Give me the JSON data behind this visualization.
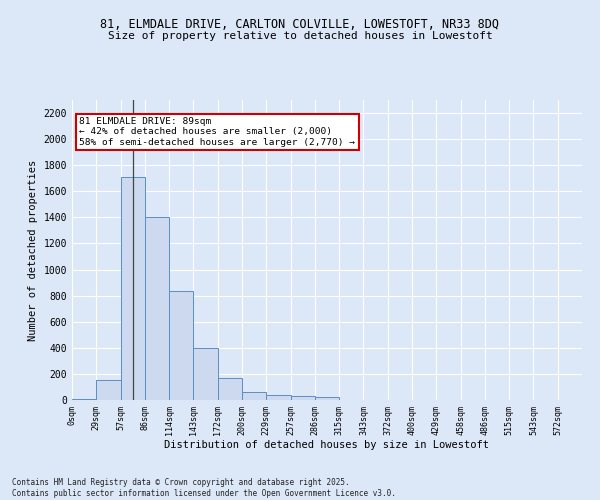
{
  "title_line1": "81, ELMDALE DRIVE, CARLTON COLVILLE, LOWESTOFT, NR33 8DQ",
  "title_line2": "Size of property relative to detached houses in Lowestoft",
  "xlabel": "Distribution of detached houses by size in Lowestoft",
  "ylabel": "Number of detached properties",
  "bar_values": [
    10,
    155,
    1710,
    1400,
    835,
    400,
    165,
    65,
    40,
    30,
    25,
    0,
    0,
    0,
    0,
    0,
    0,
    0,
    0,
    0,
    0
  ],
  "bar_labels": [
    "0sqm",
    "29sqm",
    "57sqm",
    "86sqm",
    "114sqm",
    "143sqm",
    "172sqm",
    "200sqm",
    "229sqm",
    "257sqm",
    "286sqm",
    "315sqm",
    "343sqm",
    "372sqm",
    "400sqm",
    "429sqm",
    "458sqm",
    "486sqm",
    "515sqm",
    "543sqm",
    "572sqm"
  ],
  "bar_color": "#ccd9ee",
  "bar_edge_color": "#5b8ec4",
  "ylim": [
    0,
    2300
  ],
  "yticks": [
    0,
    200,
    400,
    600,
    800,
    1000,
    1200,
    1400,
    1600,
    1800,
    2000,
    2200
  ],
  "annotation_text": "81 ELMDALE DRIVE: 89sqm\n← 42% of detached houses are smaller (2,000)\n58% of semi-detached houses are larger (2,770) →",
  "annotation_box_color": "#ffffff",
  "annotation_box_edge": "#cc0000",
  "vline_x_idx": 2,
  "bg_color": "#dce8f8",
  "grid_color": "#ffffff",
  "footer_line1": "Contains HM Land Registry data © Crown copyright and database right 2025.",
  "footer_line2": "Contains public sector information licensed under the Open Government Licence v3.0."
}
